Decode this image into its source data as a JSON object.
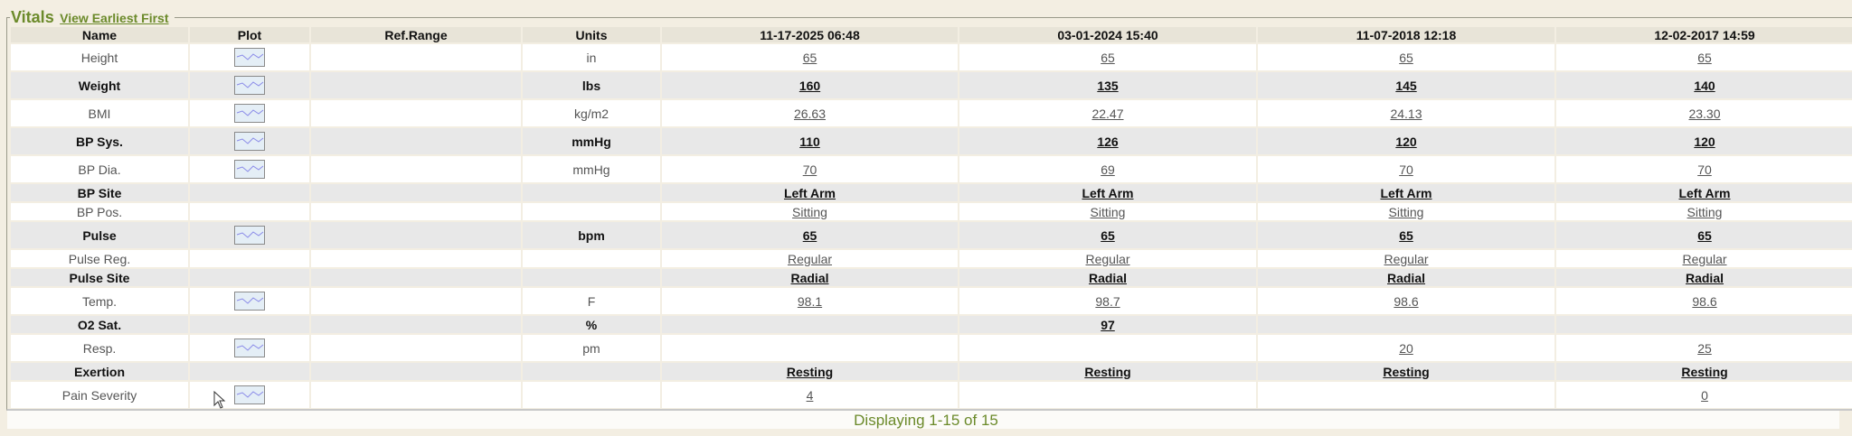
{
  "section": {
    "title": "Vitals",
    "sort_link": "View Earliest First"
  },
  "table": {
    "headers": [
      "Name",
      "Plot",
      "Ref.Range",
      "Units",
      "11-17-2025 06:48",
      "03-01-2024 15:40",
      "11-07-2018 12:18",
      "12-02-2017 14:59"
    ],
    "rows": [
      {
        "name": "Height",
        "plot": true,
        "ref": "",
        "units": "in",
        "values": [
          "65",
          "65",
          "65",
          "65"
        ]
      },
      {
        "name": "Weight",
        "plot": true,
        "ref": "",
        "units": "lbs",
        "values": [
          "160",
          "135",
          "145",
          "140"
        ]
      },
      {
        "name": "BMI",
        "plot": true,
        "ref": "",
        "units": "kg/m2",
        "values": [
          "26.63",
          "22.47",
          "24.13",
          "23.30"
        ]
      },
      {
        "name": "BP Sys.",
        "plot": true,
        "ref": "",
        "units": "mmHg",
        "values": [
          "110",
          "126",
          "120",
          "120"
        ]
      },
      {
        "name": "BP Dia.",
        "plot": true,
        "ref": "",
        "units": "mmHg",
        "values": [
          "70",
          "69",
          "70",
          "70"
        ]
      },
      {
        "name": "BP Site",
        "plot": false,
        "ref": "",
        "units": "",
        "values": [
          "Left Arm",
          "Left Arm",
          "Left Arm",
          "Left Arm"
        ]
      },
      {
        "name": "BP Pos.",
        "plot": false,
        "ref": "",
        "units": "",
        "values": [
          "Sitting",
          "Sitting",
          "Sitting",
          "Sitting"
        ]
      },
      {
        "name": "Pulse",
        "plot": true,
        "ref": "",
        "units": "bpm",
        "values": [
          "65",
          "65",
          "65",
          "65"
        ]
      },
      {
        "name": "Pulse Reg.",
        "plot": false,
        "ref": "",
        "units": "",
        "values": [
          "Regular",
          "Regular",
          "Regular",
          "Regular"
        ]
      },
      {
        "name": "Pulse Site",
        "plot": false,
        "ref": "",
        "units": "",
        "values": [
          "Radial",
          "Radial",
          "Radial",
          "Radial"
        ]
      },
      {
        "name": "Temp.",
        "plot": true,
        "ref": "",
        "units": "F",
        "values": [
          "98.1",
          "98.7",
          "98.6",
          "98.6"
        ]
      },
      {
        "name": "O2 Sat.",
        "plot": false,
        "ref": "",
        "units": "%",
        "values": [
          "",
          "97",
          "",
          ""
        ]
      },
      {
        "name": "Resp.",
        "plot": true,
        "ref": "",
        "units": "pm",
        "values": [
          "",
          "",
          "20",
          "25"
        ]
      },
      {
        "name": "Exertion",
        "plot": false,
        "ref": "",
        "units": "",
        "values": [
          "Resting",
          "Resting",
          "Resting",
          "Resting"
        ]
      },
      {
        "name": "Pain Severity",
        "plot": true,
        "ref": "",
        "units": "",
        "values": [
          "4",
          "",
          "",
          "0"
        ]
      }
    ]
  },
  "footer": {
    "text": "Displaying 1-15 of 15"
  },
  "icons": {
    "plot": "line-chart-icon",
    "cursor": "mouse-pointer-icon"
  },
  "colors": {
    "accent": "#6b8a2a",
    "background": "#f3eee2",
    "row_alt": "#e8e8e8",
    "header": "#e8e4d8"
  }
}
